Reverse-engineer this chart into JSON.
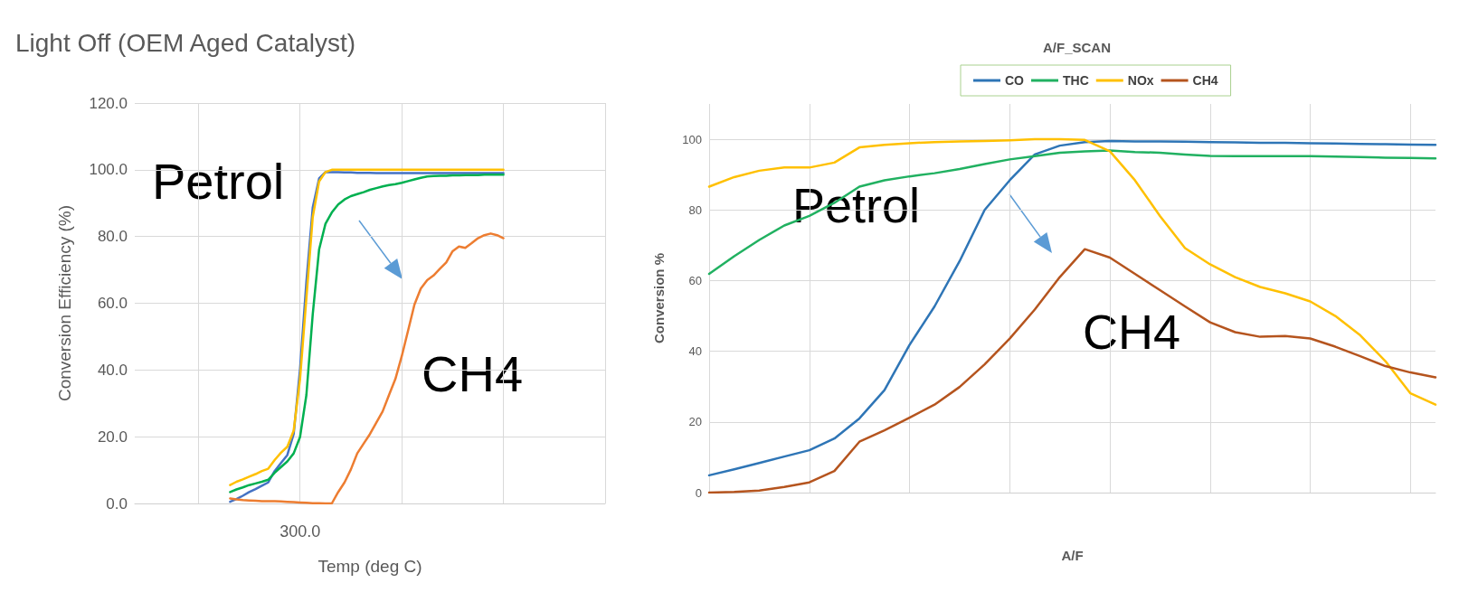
{
  "chart_data": [
    {
      "type": "line",
      "title": "Light Off (OEM Aged Catalyst)",
      "xlabel": "Temp (deg C)",
      "ylabel": "Conversion Efficiency (%)",
      "categories": [
        null,
        null,
        null,
        null,
        null,
        null,
        null,
        null,
        null,
        null,
        null,
        null,
        null,
        null,
        null,
        null,
        null,
        null,
        null,
        null,
        null,
        null,
        null,
        null,
        null,
        null,
        "300.0",
        null,
        null,
        null,
        null,
        null,
        null,
        null,
        null,
        null,
        null,
        null,
        null,
        null,
        null,
        null,
        null,
        null,
        null,
        null,
        null,
        null,
        null,
        null,
        null,
        null,
        null,
        null,
        null,
        null,
        null,
        null,
        null,
        null,
        null,
        null,
        null,
        null,
        null,
        null,
        null,
        null,
        null,
        null,
        null,
        null,
        null,
        null,
        null
      ],
      "series": [
        {
          "color": "#4472c4",
          "values": [
            null,
            null,
            null,
            null,
            null,
            null,
            null,
            null,
            null,
            null,
            null,
            null,
            null,
            null,
            null,
            0.5,
            1.3,
            2.3,
            3.4,
            4.3,
            5.3,
            6.3,
            9.7,
            12.1,
            14.5,
            20.8,
            40.2,
            66.4,
            88.7,
            97.4,
            99.3,
            99.3,
            99.3,
            99.2,
            99.2,
            99.1,
            99.1,
            99.1,
            99,
            99,
            99,
            99,
            99,
            99,
            99,
            99,
            99,
            99,
            99,
            99,
            99,
            99,
            99,
            99,
            99,
            99,
            99,
            99,
            99,
            null,
            null,
            null,
            null,
            null,
            null,
            null,
            null,
            null,
            null,
            null,
            null,
            null,
            null,
            null,
            null
          ]
        },
        {
          "color": "#00b050",
          "values": [
            null,
            null,
            null,
            null,
            null,
            null,
            null,
            null,
            null,
            null,
            null,
            null,
            null,
            null,
            null,
            3.4,
            4.2,
            4.8,
            5.5,
            6,
            6.5,
            7.1,
            9.2,
            10.9,
            12.6,
            15,
            19.9,
            32.5,
            56.7,
            76.1,
            83.8,
            87.2,
            89.6,
            91.1,
            92.1,
            92.7,
            93.3,
            94,
            94.5,
            95,
            95.4,
            95.7,
            96.1,
            96.6,
            97.1,
            97.6,
            98,
            98.1,
            98.2,
            98.2,
            98.3,
            98.3,
            98.4,
            98.4,
            98.4,
            98.5,
            98.5,
            98.5,
            98.5,
            null,
            null,
            null,
            null,
            null,
            null,
            null,
            null,
            null,
            null,
            null,
            null,
            null,
            null,
            null,
            null
          ]
        },
        {
          "color": "#ffc000",
          "values": [
            null,
            null,
            null,
            null,
            null,
            null,
            null,
            null,
            null,
            null,
            null,
            null,
            null,
            null,
            null,
            5.5,
            6.5,
            7.2,
            8,
            8.8,
            9.7,
            10.4,
            13,
            15.2,
            17,
            21.8,
            37.3,
            61.5,
            85.8,
            96.5,
            99.3,
            100,
            100,
            100,
            100,
            100,
            100,
            100,
            100,
            100,
            100,
            100,
            100,
            100,
            100,
            100,
            100,
            100,
            100,
            100,
            100,
            100,
            100,
            100,
            100,
            100,
            100,
            100,
            100,
            null,
            null,
            null,
            null,
            null,
            null,
            null,
            null,
            null,
            null,
            null,
            null,
            null,
            null,
            null,
            null
          ]
        },
        {
          "color": "#ed7d31",
          "values": [
            null,
            null,
            null,
            null,
            null,
            null,
            null,
            null,
            null,
            null,
            null,
            null,
            null,
            null,
            null,
            1.5,
            1.2,
            1,
            0.9,
            0.8,
            0.7,
            0.7,
            0.7,
            0.6,
            0.5,
            0.4,
            0.3,
            0.2,
            0.1,
            0.1,
            0,
            0,
            3.4,
            6.3,
            10.2,
            15,
            17.9,
            20.8,
            24.2,
            27.6,
            32.5,
            37.3,
            44.1,
            51.8,
            59.6,
            64.4,
            66.9,
            68.3,
            70.3,
            72.2,
            75.6,
            77,
            76.6,
            78,
            79.5,
            80.4,
            80.9,
            80.4,
            79.5,
            null,
            null,
            null,
            null,
            null,
            null,
            null,
            null,
            null,
            null,
            null,
            null,
            null,
            null,
            null,
            null
          ]
        }
      ],
      "ylim": [
        0,
        120
      ],
      "yticks": [
        {
          "value": 0,
          "label": "0.0"
        },
        {
          "value": 20,
          "label": "20.0"
        },
        {
          "value": 40,
          "label": "40.0"
        },
        {
          "value": 60,
          "label": "60.0"
        },
        {
          "value": 80,
          "label": "80.0"
        },
        {
          "value": 100,
          "label": "100.0"
        },
        {
          "value": 120,
          "label": "120.0"
        }
      ],
      "grid": true,
      "marker": "none",
      "line_style": "solid",
      "annotations": [
        "Petrol",
        "CH4"
      ]
    },
    {
      "type": "line",
      "title": "A/F_SCAN",
      "xlabel": "A/F",
      "ylabel": "Conversion %",
      "categories": [
        null,
        null,
        null,
        null,
        null,
        null,
        null,
        null,
        null,
        null,
        null,
        null,
        null,
        null,
        null,
        null,
        null,
        null,
        null,
        null,
        null,
        null,
        null,
        null,
        null,
        null,
        null,
        null,
        null,
        null
      ],
      "series": [
        {
          "name": "CO",
          "color": "#2e75b6",
          "values": [
            4.9,
            6.6,
            8.4,
            10.2,
            12,
            15.3,
            21,
            29,
            41.8,
            52.7,
            65.5,
            80,
            88.4,
            95.7,
            98.2,
            99.2,
            99.5,
            99.4,
            99.4,
            99.3,
            99.2,
            99.1,
            99,
            99,
            98.9,
            98.8,
            98.7,
            98.6,
            98.5,
            98.4
          ]
        },
        {
          "name": "THC",
          "color": "#21b161",
          "values": [
            61.9,
            66.9,
            71.5,
            75.6,
            78.3,
            82,
            86.6,
            88.4,
            89.5,
            90.4,
            91.6,
            93,
            94.3,
            95.2,
            96.2,
            96.6,
            96.8,
            96.4,
            96.2,
            95.7,
            95.3,
            95.2,
            95.2,
            95.2,
            95.2,
            95.1,
            95,
            94.8,
            94.7,
            94.6
          ]
        },
        {
          "name": "NOx",
          "color": "#ffc000",
          "values": [
            86.6,
            89.3,
            91.1,
            92,
            92,
            93.4,
            97.7,
            98.4,
            98.9,
            99.2,
            99.4,
            99.5,
            99.7,
            100,
            100,
            99.8,
            96.6,
            88.4,
            78.3,
            69.2,
            64.6,
            61,
            58.2,
            56.4,
            54.1,
            50,
            44.5,
            37.2,
            28.1,
            24.9
          ]
        },
        {
          "name": "CH4",
          "color": "#b5541e",
          "values": [
            0,
            0.2,
            0.6,
            1.6,
            2.9,
            6.1,
            14.4,
            17.6,
            21.2,
            24.9,
            29.9,
            36.3,
            43.6,
            51.8,
            61,
            68.9,
            66.5,
            61.9,
            57.3,
            52.7,
            48.2,
            45.4,
            44.1,
            44.3,
            43.6,
            41.3,
            38.6,
            35.8,
            34,
            32.6
          ]
        }
      ],
      "ylim": [
        0,
        110
      ],
      "yticks": [
        0,
        20,
        40,
        60,
        80,
        100
      ],
      "grid": true,
      "legend": "top",
      "marker": "none",
      "line_style": "solid",
      "annotations": [
        "Petrol",
        "CH4"
      ]
    }
  ]
}
